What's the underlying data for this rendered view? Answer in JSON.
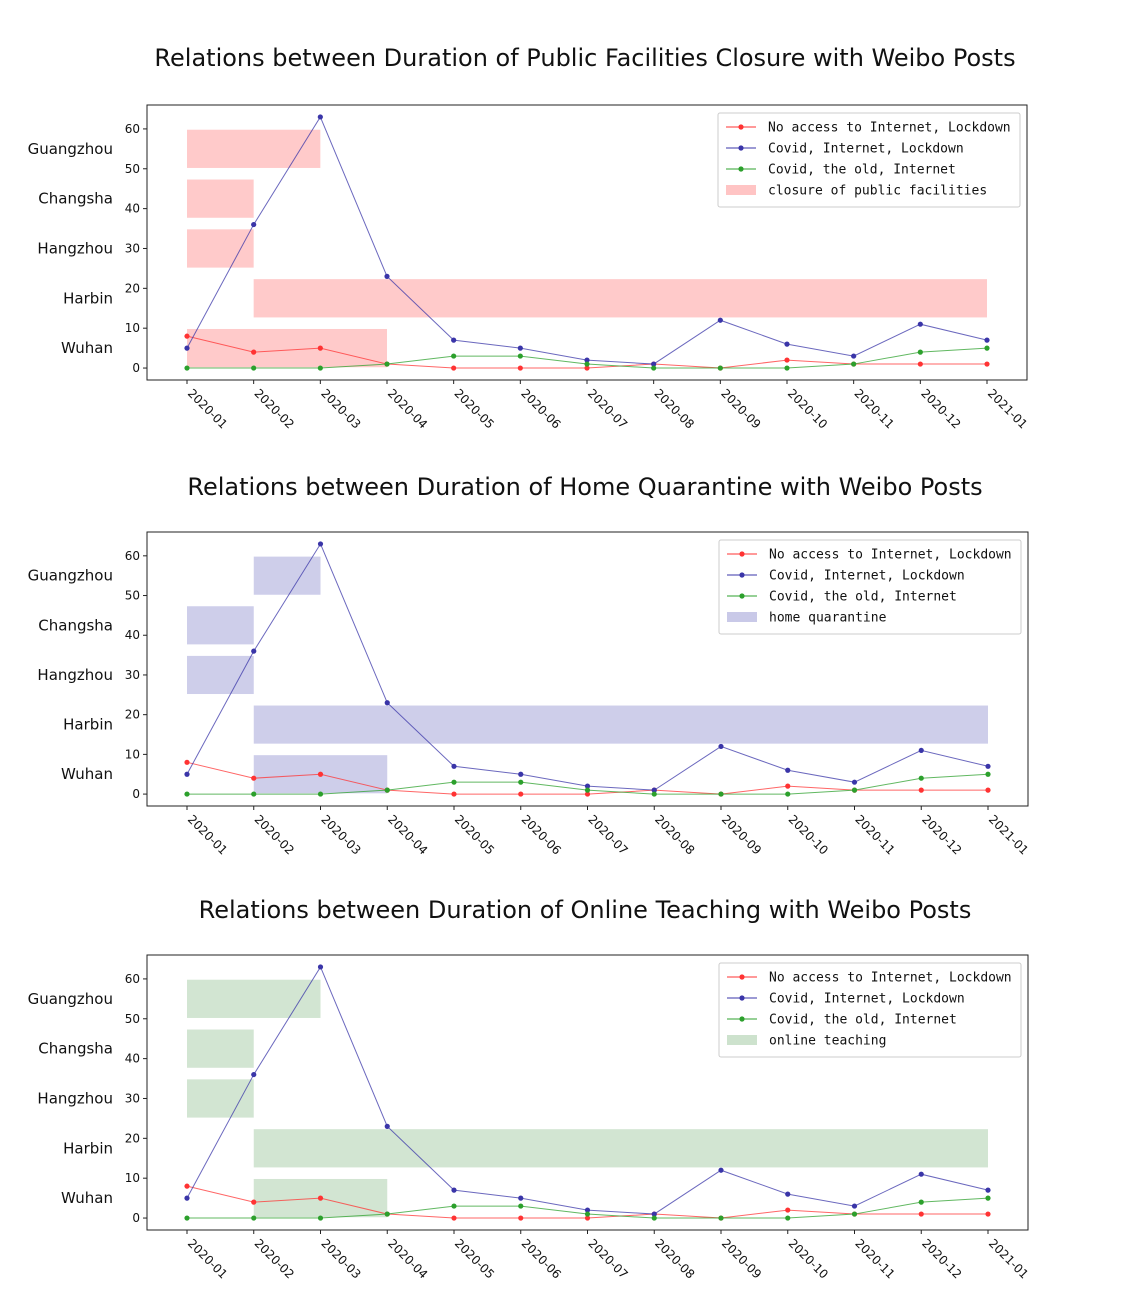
{
  "chart_data": [
    {
      "type": "line",
      "title": "Relations between Duration of Public Facilities Closure with Weibo Posts",
      "x": [
        "2020-01",
        "2020-02",
        "2020-03",
        "2020-04",
        "2020-05",
        "2020-06",
        "2020-07",
        "2020-08",
        "2020-09",
        "2020-10",
        "2020-11",
        "2020-12",
        "2021-01"
      ],
      "ylim": [
        -3,
        66
      ],
      "yticks": [
        0,
        10,
        20,
        30,
        40,
        50,
        60
      ],
      "series": [
        {
          "name": "No access to Internet, Lockdown",
          "color": "#ff3333",
          "values": [
            8,
            4,
            5,
            1,
            0,
            0,
            0,
            1,
            0,
            2,
            1,
            1,
            1
          ]
        },
        {
          "name": "Covid, Internet, Lockdown",
          "color": "#3a35a8",
          "values": [
            5,
            36,
            63,
            23,
            7,
            5,
            2,
            1,
            12,
            6,
            3,
            11,
            7
          ]
        },
        {
          "name": "Covid, the old, Internet",
          "color": "#2ca02c",
          "values": [
            0,
            0,
            0,
            1,
            3,
            3,
            1,
            0,
            0,
            0,
            1,
            4,
            5
          ]
        }
      ],
      "bands_label": "closure of public facilities",
      "bands_color": "#ffc4c4",
      "cities": [
        {
          "name": "Guangzhou",
          "start": "2020-01",
          "end": "2020-03"
        },
        {
          "name": "Changsha",
          "start": "2020-01",
          "end": "2020-02"
        },
        {
          "name": "Hangzhou",
          "start": "2020-01",
          "end": "2020-02"
        },
        {
          "name": "Harbin",
          "start": "2020-02",
          "end": "2021-01"
        },
        {
          "name": "Wuhan",
          "start": "2020-01",
          "end": "2020-04"
        }
      ],
      "legend": "top-right"
    },
    {
      "type": "line",
      "title": "Relations between Duration of Home Quarantine with Weibo Posts",
      "x": [
        "2020-01",
        "2020-02",
        "2020-03",
        "2020-04",
        "2020-05",
        "2020-06",
        "2020-07",
        "2020-08",
        "2020-09",
        "2020-10",
        "2020-11",
        "2020-12",
        "2021-01"
      ],
      "ylim": [
        -3,
        66
      ],
      "yticks": [
        0,
        10,
        20,
        30,
        40,
        50,
        60
      ],
      "series": [
        {
          "name": "No access to Internet, Lockdown",
          "color": "#ff3333",
          "values": [
            8,
            4,
            5,
            1,
            0,
            0,
            0,
            1,
            0,
            2,
            1,
            1,
            1
          ]
        },
        {
          "name": "Covid, Internet, Lockdown",
          "color": "#3a35a8",
          "values": [
            5,
            36,
            63,
            23,
            7,
            5,
            2,
            1,
            12,
            6,
            3,
            11,
            7
          ]
        },
        {
          "name": "Covid, the old, Internet",
          "color": "#2ca02c",
          "values": [
            0,
            0,
            0,
            1,
            3,
            3,
            1,
            0,
            0,
            0,
            1,
            4,
            5
          ]
        }
      ],
      "bands_label": "home quarantine",
      "bands_color": "#c9c9e8",
      "cities": [
        {
          "name": "Guangzhou",
          "start": "2020-02",
          "end": "2020-03"
        },
        {
          "name": "Changsha",
          "start": "2020-01",
          "end": "2020-02"
        },
        {
          "name": "Hangzhou",
          "start": "2020-01",
          "end": "2020-02"
        },
        {
          "name": "Harbin",
          "start": "2020-02",
          "end": "2021-01"
        },
        {
          "name": "Wuhan",
          "start": "2020-02",
          "end": "2020-04"
        }
      ],
      "legend": "top-right"
    },
    {
      "type": "line",
      "title": "Relations between Duration of Online Teaching with Weibo Posts",
      "x": [
        "2020-01",
        "2020-02",
        "2020-03",
        "2020-04",
        "2020-05",
        "2020-06",
        "2020-07",
        "2020-08",
        "2020-09",
        "2020-10",
        "2020-11",
        "2020-12",
        "2021-01"
      ],
      "ylim": [
        -3,
        66
      ],
      "yticks": [
        0,
        10,
        20,
        30,
        40,
        50,
        60
      ],
      "series": [
        {
          "name": "No access to Internet, Lockdown",
          "color": "#ff3333",
          "values": [
            8,
            4,
            5,
            1,
            0,
            0,
            0,
            1,
            0,
            2,
            1,
            1,
            1
          ]
        },
        {
          "name": "Covid, Internet, Lockdown",
          "color": "#3a35a8",
          "values": [
            5,
            36,
            63,
            23,
            7,
            5,
            2,
            1,
            12,
            6,
            3,
            11,
            7
          ]
        },
        {
          "name": "Covid, the old, Internet",
          "color": "#2ca02c",
          "values": [
            0,
            0,
            0,
            1,
            3,
            3,
            1,
            0,
            0,
            0,
            1,
            4,
            5
          ]
        }
      ],
      "bands_label": "online teaching",
      "bands_color": "#cde2cd",
      "cities": [
        {
          "name": "Guangzhou",
          "start": "2020-01",
          "end": "2020-03"
        },
        {
          "name": "Changsha",
          "start": "2020-01",
          "end": "2020-02"
        },
        {
          "name": "Hangzhou",
          "start": "2020-01",
          "end": "2020-02"
        },
        {
          "name": "Harbin",
          "start": "2020-02",
          "end": "2021-01"
        },
        {
          "name": "Wuhan",
          "start": "2020-02",
          "end": "2020-04"
        }
      ],
      "legend": "top-right"
    }
  ]
}
